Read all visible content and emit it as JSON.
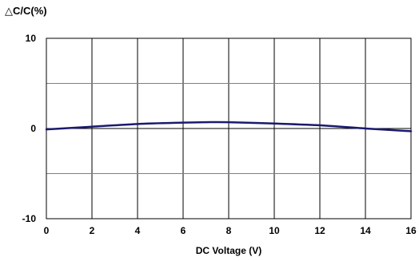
{
  "chart_data": {
    "type": "line",
    "title": "",
    "ylabel": "△C/C(%)",
    "xlabel": "DC Voltage (V)",
    "xlim": [
      0,
      16
    ],
    "ylim": [
      -10,
      10
    ],
    "x_ticks": [
      0,
      2,
      4,
      6,
      8,
      10,
      12,
      14,
      16
    ],
    "y_ticks": [
      -10,
      0,
      10
    ],
    "y_gridlines": [
      -10,
      -5,
      0,
      5,
      10
    ],
    "grid": true,
    "series": [
      {
        "color": "#1a1a6e",
        "x": [
          0,
          2,
          4,
          6,
          7,
          8,
          10,
          12,
          14,
          16
        ],
        "values": [
          -0.1,
          0.2,
          0.5,
          0.65,
          0.7,
          0.7,
          0.55,
          0.35,
          0.0,
          -0.3
        ]
      }
    ]
  }
}
